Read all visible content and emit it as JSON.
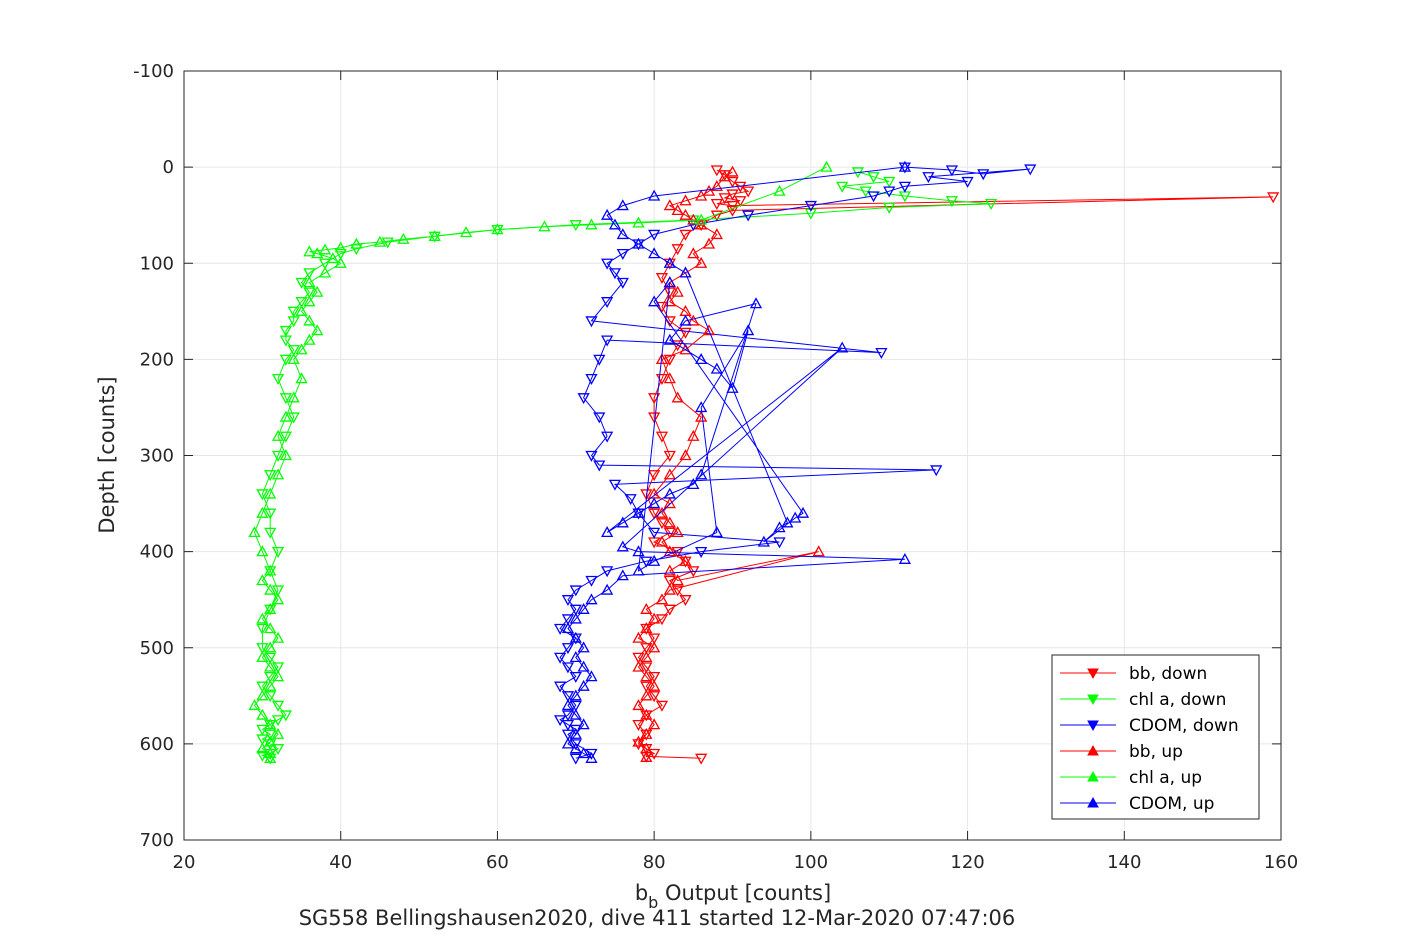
{
  "chart_data": {
    "type": "scatter",
    "title": "",
    "xlabel_main": "b",
    "xlabel_sub": "b",
    "xlabel_rest": " Output [counts]",
    "ylabel": "Depth [counts]",
    "caption": "SG558 Bellingshausen2020, dive 411 started 12-Mar-2020 07:47:06",
    "xlim": [
      20,
      160
    ],
    "ylim": [
      -100,
      700
    ],
    "y_reversed": true,
    "grid": true,
    "legend_position": "bottom-right",
    "xticks": [
      "20",
      "40",
      "60",
      "80",
      "100",
      "120",
      "140",
      "160"
    ],
    "yticks": [
      "-100",
      "0",
      "100",
      "200",
      "300",
      "400",
      "500",
      "600",
      "700"
    ],
    "series": [
      {
        "name": "bb, down",
        "color": "#ff0000",
        "marker": "down",
        "x": [
          88,
          89,
          90,
          91,
          92,
          90,
          89,
          91,
          88,
          90,
          159,
          90,
          88,
          86,
          84,
          83,
          82,
          81,
          82,
          81,
          82,
          84,
          83,
          82,
          81,
          80,
          80,
          81,
          82,
          80,
          79,
          80,
          81,
          82,
          80,
          83,
          84,
          85,
          82,
          83,
          84,
          82,
          81,
          79,
          80,
          79,
          78,
          79,
          80,
          79,
          80,
          81,
          79,
          78,
          79,
          78,
          79,
          80,
          79,
          86
        ],
        "y": [
          3,
          8,
          15,
          20,
          25,
          28,
          32,
          35,
          38,
          40,
          31,
          45,
          50,
          60,
          70,
          85,
          100,
          115,
          130,
          145,
          160,
          172,
          185,
          200,
          220,
          240,
          260,
          280,
          300,
          320,
          340,
          360,
          370,
          380,
          390,
          400,
          410,
          420,
          430,
          440,
          450,
          460,
          470,
          480,
          490,
          500,
          510,
          520,
          530,
          540,
          550,
          560,
          570,
          580,
          590,
          600,
          605,
          610,
          613,
          615
        ]
      },
      {
        "name": "chl a, down",
        "color": "#00ff00",
        "marker": "down",
        "x": [
          106,
          108,
          110,
          104,
          107,
          112,
          118,
          123,
          110,
          100,
          85,
          70,
          60,
          52,
          46,
          42,
          40,
          38,
          36,
          35,
          36,
          35,
          34,
          34,
          33,
          33,
          34,
          33,
          32,
          33,
          34,
          33,
          32,
          31,
          30,
          31,
          31,
          32,
          31,
          32,
          31,
          30,
          30,
          31,
          32,
          31,
          30,
          31,
          32,
          33,
          32,
          31,
          30,
          31,
          30,
          31,
          32,
          31,
          30,
          31
        ],
        "y": [
          5,
          10,
          15,
          20,
          25,
          30,
          35,
          38,
          42,
          48,
          55,
          60,
          65,
          72,
          78,
          85,
          90,
          100,
          110,
          120,
          130,
          140,
          150,
          160,
          170,
          180,
          190,
          200,
          220,
          240,
          260,
          280,
          300,
          320,
          340,
          360,
          380,
          400,
          420,
          440,
          460,
          480,
          500,
          510,
          520,
          530,
          540,
          550,
          560,
          570,
          575,
          580,
          585,
          590,
          595,
          600,
          605,
          610,
          612,
          615
        ]
      },
      {
        "name": "CDOM, down",
        "color": "#0000ff",
        "marker": "down",
        "x": [
          112,
          118,
          122,
          128,
          115,
          120,
          112,
          110,
          108,
          100,
          92,
          85,
          80,
          78,
          76,
          74,
          75,
          76,
          74,
          72,
          109,
          74,
          73,
          72,
          71,
          73,
          74,
          72,
          73,
          116,
          75,
          77,
          78,
          80,
          96,
          86,
          79,
          74,
          72,
          70,
          69,
          70,
          69,
          68,
          70,
          69,
          68,
          69,
          70,
          68,
          69,
          70,
          69,
          68,
          69,
          70,
          69,
          70,
          72,
          70
        ],
        "y": [
          0,
          3,
          7,
          2,
          10,
          15,
          20,
          25,
          30,
          40,
          50,
          60,
          70,
          80,
          90,
          100,
          110,
          120,
          140,
          160,
          193,
          180,
          200,
          220,
          240,
          260,
          280,
          300,
          310,
          315,
          330,
          345,
          360,
          380,
          390,
          400,
          410,
          420,
          430,
          440,
          450,
          460,
          470,
          480,
          490,
          500,
          510,
          520,
          530,
          540,
          550,
          560,
          570,
          575,
          580,
          585,
          590,
          600,
          610,
          615
        ]
      },
      {
        "name": "bb, up",
        "color": "#ff0000",
        "marker": "up",
        "x": [
          79,
          79,
          78,
          79,
          80,
          79,
          78,
          79,
          80,
          79,
          78,
          79,
          80,
          78,
          79,
          80,
          79,
          81,
          82,
          101,
          83,
          82,
          84,
          82,
          81,
          83,
          82,
          81,
          82,
          80,
          82,
          84,
          85,
          86,
          83,
          82,
          81,
          84,
          87,
          85,
          84,
          82,
          83,
          82,
          84,
          86,
          85,
          87,
          88,
          86,
          85,
          84,
          83,
          82,
          84,
          86,
          87,
          88,
          89,
          90
        ],
        "y": [
          614,
          605,
          598,
          590,
          580,
          570,
          560,
          550,
          540,
          530,
          520,
          510,
          500,
          490,
          480,
          470,
          460,
          450,
          440,
          400,
          430,
          420,
          410,
          400,
          390,
          380,
          370,
          360,
          350,
          340,
          320,
          300,
          280,
          260,
          240,
          220,
          200,
          190,
          170,
          160,
          150,
          140,
          130,
          120,
          110,
          100,
          90,
          80,
          70,
          60,
          55,
          50,
          45,
          40,
          35,
          30,
          25,
          20,
          10,
          5
        ]
      },
      {
        "name": "chl a, up",
        "color": "#00ff00",
        "marker": "up",
        "x": [
          31,
          31,
          30,
          31,
          32,
          31,
          30,
          29,
          30,
          31,
          32,
          31,
          30,
          31,
          32,
          31,
          30,
          31,
          32,
          31,
          30,
          31,
          30,
          29,
          30,
          31,
          32,
          33,
          32,
          33,
          34,
          35,
          34,
          35,
          36,
          37,
          36,
          35,
          36,
          37,
          36,
          38,
          40,
          39,
          37,
          36,
          38,
          40,
          42,
          45,
          48,
          52,
          56,
          60,
          66,
          72,
          78,
          86,
          96,
          102
        ],
        "y": [
          615,
          610,
          605,
          598,
          590,
          580,
          570,
          560,
          550,
          540,
          530,
          520,
          510,
          500,
          490,
          480,
          470,
          460,
          450,
          440,
          430,
          420,
          400,
          380,
          360,
          340,
          320,
          300,
          280,
          260,
          240,
          220,
          200,
          190,
          180,
          170,
          160,
          150,
          140,
          130,
          120,
          110,
          100,
          95,
          90,
          88,
          86,
          84,
          80,
          78,
          75,
          72,
          68,
          65,
          62,
          60,
          58,
          55,
          25,
          0
        ]
      },
      {
        "name": "CDOM, up",
        "color": "#0000ff",
        "marker": "up",
        "x": [
          72,
          71,
          70,
          69,
          70,
          71,
          70,
          69,
          70,
          71,
          72,
          71,
          70,
          71,
          70,
          69,
          70,
          71,
          72,
          74,
          76,
          112,
          78,
          76,
          104,
          74,
          76,
          78,
          80,
          82,
          85,
          86,
          93,
          84,
          82,
          86,
          88,
          90,
          92,
          86,
          88,
          80,
          78,
          82,
          80,
          99,
          98,
          94,
          96,
          97,
          84,
          82,
          80,
          78,
          76,
          75,
          74,
          76,
          80,
          112
        ],
        "y": [
          615,
          610,
          605,
          600,
          590,
          580,
          570,
          560,
          550,
          540,
          530,
          520,
          510,
          500,
          490,
          480,
          470,
          460,
          450,
          440,
          425,
          408,
          400,
          395,
          188,
          380,
          370,
          360,
          350,
          340,
          330,
          320,
          142,
          160,
          180,
          200,
          210,
          230,
          170,
          250,
          380,
          410,
          420,
          120,
          140,
          360,
          365,
          390,
          375,
          370,
          110,
          100,
          90,
          80,
          70,
          60,
          50,
          40,
          30,
          0
        ]
      }
    ]
  }
}
